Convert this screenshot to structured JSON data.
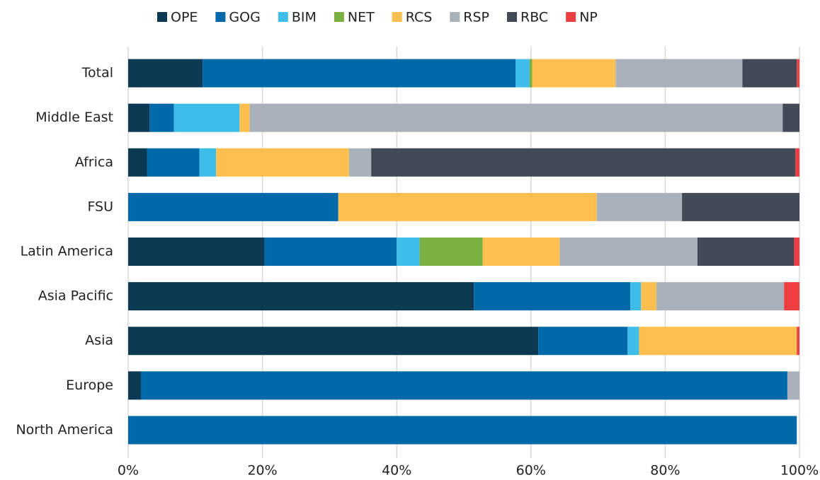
{
  "chart_data": {
    "type": "stacked-bar-horizontal",
    "categories": [
      "Total",
      "Middle East",
      "Africa",
      "FSU",
      "Latin America",
      "Asia Pacific",
      "Asia",
      "Europe",
      "North America"
    ],
    "series": [
      {
        "name": "OPE",
        "color": "#0b3a52",
        "values": [
          11.1,
          3.2,
          2.8,
          0,
          20.3,
          51.5,
          61.1,
          1.9,
          0
        ]
      },
      {
        "name": "GOG",
        "color": "#0069aa",
        "values": [
          46.6,
          3.6,
          7.8,
          31.3,
          19.7,
          23.3,
          13.3,
          96.3,
          99.6
        ]
      },
      {
        "name": "BIM",
        "color": "#3fbde9",
        "values": [
          2.1,
          9.8,
          2.5,
          0,
          3.4,
          1.6,
          1.7,
          0,
          0
        ]
      },
      {
        "name": "NET",
        "color": "#7ab042",
        "values": [
          0.4,
          0,
          0,
          0,
          9.4,
          0,
          0,
          0,
          0
        ]
      },
      {
        "name": "RCS",
        "color": "#fdbf50",
        "values": [
          12.4,
          1.5,
          19.8,
          38.5,
          11.5,
          2.3,
          23.5,
          0,
          0
        ]
      },
      {
        "name": "RSP",
        "color": "#a9b2bb",
        "values": [
          18.9,
          79.4,
          3.3,
          12.7,
          20.5,
          19.0,
          0,
          1.8,
          0
        ]
      },
      {
        "name": "RBC",
        "color": "#414a55",
        "values": [
          8.1,
          2.5,
          63.2,
          17.5,
          14.4,
          0,
          0,
          0,
          0
        ]
      },
      {
        "name": "NP",
        "color": "#ef3e42",
        "values": [
          0.4,
          0,
          0.6,
          0,
          0.8,
          2.3,
          0.4,
          0,
          0
        ]
      }
    ],
    "xlim": [
      0,
      100
    ],
    "xticks": [
      {
        "value": 0,
        "label": "0%"
      },
      {
        "value": 20,
        "label": "20%"
      },
      {
        "value": 40,
        "label": "40%"
      },
      {
        "value": 60,
        "label": "60%"
      },
      {
        "value": 80,
        "label": "80%"
      },
      {
        "value": 100,
        "label": "100%"
      }
    ],
    "grid": true,
    "legend": "top"
  }
}
